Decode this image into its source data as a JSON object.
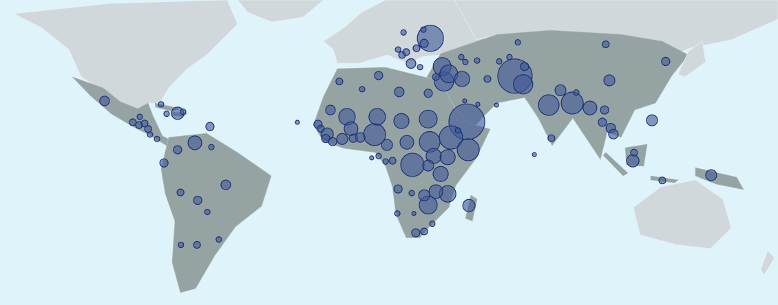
{
  "map": {
    "bubble_color": "#3f5a96",
    "bubbles": [
      {
        "lon": -106.8,
        "lat": 24.0,
        "value": 49
      },
      {
        "lon": -95.0,
        "lat": 15.6,
        "value": 25
      },
      {
        "lon": -92.4,
        "lat": 14.5,
        "value": 25
      },
      {
        "lon": -90.1,
        "lat": 15.1,
        "value": 25
      },
      {
        "lon": -88.6,
        "lat": 12.9,
        "value": 25
      },
      {
        "lon": -87.8,
        "lat": 10.6,
        "value": 16
      },
      {
        "lon": -84.9,
        "lat": 8.8,
        "value": 16
      },
      {
        "lon": -92.1,
        "lat": 17.8,
        "value": 16
      },
      {
        "lon": -83.2,
        "lat": 22.7,
        "value": 16
      },
      {
        "lon": -80.9,
        "lat": 19.0,
        "value": 16
      },
      {
        "lon": -76.3,
        "lat": 19.2,
        "value": 81
      },
      {
        "lon": -74.0,
        "lat": 19.8,
        "value": 16
      },
      {
        "lon": -62.8,
        "lat": 13.9,
        "value": 36
      },
      {
        "lon": -69.1,
        "lat": 7.2,
        "value": 100
      },
      {
        "lon": -76.3,
        "lat": 4.3,
        "value": 36
      },
      {
        "lon": -82.0,
        "lat": -1.2,
        "value": 36
      },
      {
        "lon": -62.2,
        "lat": 5.4,
        "value": 16
      },
      {
        "lon": -75.1,
        "lat": -13.4,
        "value": 25
      },
      {
        "lon": -67.9,
        "lat": -16.6,
        "value": 36
      },
      {
        "lon": -56.2,
        "lat": -10.3,
        "value": 49
      },
      {
        "lon": -63.9,
        "lat": -21.2,
        "value": 16
      },
      {
        "lon": -59.1,
        "lat": -31.5,
        "value": 16
      },
      {
        "lon": -68.2,
        "lat": -33.4,
        "value": 25
      },
      {
        "lon": -74.9,
        "lat": -33.4,
        "value": 16
      },
      {
        "lon": 18.0,
        "lat": 47.0,
        "value": 16
      },
      {
        "lon": 26.3,
        "lat": 47.8,
        "value": 16
      },
      {
        "lon": 29.2,
        "lat": 45.3,
        "value": 361
      },
      {
        "lon": 26.6,
        "lat": 43.8,
        "value": 36
      },
      {
        "lon": 23.4,
        "lat": 42.3,
        "value": 25
      },
      {
        "lon": 15.7,
        "lat": 41.9,
        "value": 16
      },
      {
        "lon": 17.4,
        "lat": 40.2,
        "value": 25
      },
      {
        "lon": 19.1,
        "lat": 41.1,
        "value": 25
      },
      {
        "lon": 21.1,
        "lat": 37.4,
        "value": 49
      },
      {
        "lon": 24.9,
        "lat": 36.2,
        "value": 16
      },
      {
        "lon": 34.1,
        "lat": 36.4,
        "value": 169
      },
      {
        "lon": 36.9,
        "lat": 33.9,
        "value": 169
      },
      {
        "lon": 34.9,
        "lat": 31.2,
        "value": 196
      },
      {
        "lon": 31.5,
        "lat": 32.8,
        "value": 25
      },
      {
        "lon": 42.1,
        "lat": 39.5,
        "value": 16
      },
      {
        "lon": 43.8,
        "lat": 37.9,
        "value": 16
      },
      {
        "lon": 48.7,
        "lat": 38.4,
        "value": 16
      },
      {
        "lon": 57.9,
        "lat": 38.1,
        "value": 16
      },
      {
        "lon": 62.2,
        "lat": 39.5,
        "value": 16
      },
      {
        "lon": 65.7,
        "lat": 44.1,
        "value": 16
      },
      {
        "lon": 68.5,
        "lat": 36.4,
        "value": 36
      },
      {
        "lon": 64.5,
        "lat": 33.1,
        "value": 625
      },
      {
        "lon": 67.9,
        "lat": 30.2,
        "value": 196
      },
      {
        "lon": 53.0,
        "lat": 32.1,
        "value": 25
      },
      {
        "lon": 42.4,
        "lat": 32.1,
        "value": 121
      },
      {
        "lon": 44.4,
        "lat": 15.8,
        "value": 676
      },
      {
        "lon": 45.0,
        "lat": 4.3,
        "value": 256
      },
      {
        "lon": 56.8,
        "lat": 22.4,
        "value": 9
      },
      {
        "lon": 49.0,
        "lat": 22.7,
        "value": 9
      },
      {
        "lon": 43.5,
        "lat": 24.0,
        "value": 9
      },
      {
        "lon": -8.8,
        "lat": 31.2,
        "value": 25
      },
      {
        "lon": 7.6,
        "lat": 33.3,
        "value": 36
      },
      {
        "lon": 0.7,
        "lat": 28.4,
        "value": 16
      },
      {
        "lon": 16.2,
        "lat": 27.4,
        "value": 49
      },
      {
        "lon": 28.3,
        "lat": 26.9,
        "value": 36
      },
      {
        "lon": -12.5,
        "lat": 20.5,
        "value": 49
      },
      {
        "lon": -5.6,
        "lat": 17.8,
        "value": 144
      },
      {
        "lon": 7.0,
        "lat": 17.8,
        "value": 144
      },
      {
        "lon": 17.1,
        "lat": 16.1,
        "value": 121
      },
      {
        "lon": 28.3,
        "lat": 16.9,
        "value": 169
      },
      {
        "lon": -17.7,
        "lat": 14.8,
        "value": 36
      },
      {
        "lon": -16.5,
        "lat": 13.0,
        "value": 25
      },
      {
        "lon": -13.9,
        "lat": 10.8,
        "value": 81
      },
      {
        "lon": -14.5,
        "lat": 9.0,
        "value": 36
      },
      {
        "lon": -11.6,
        "lat": 7.7,
        "value": 36
      },
      {
        "lon": -7.6,
        "lat": 8.8,
        "value": 64
      },
      {
        "lon": -3.9,
        "lat": 13.0,
        "value": 100
      },
      {
        "lon": -3.0,
        "lat": 9.1,
        "value": 36
      },
      {
        "lon": -0.1,
        "lat": 9.4,
        "value": 49
      },
      {
        "lon": 5.9,
        "lat": 10.6,
        "value": 256
      },
      {
        "lon": 11.1,
        "lat": 6.3,
        "value": 64
      },
      {
        "lon": 19.4,
        "lat": 7.4,
        "value": 100
      },
      {
        "lon": 28.9,
        "lat": 7.6,
        "value": 225
      },
      {
        "lon": 37.8,
        "lat": 9.4,
        "value": 289
      },
      {
        "lon": 40.7,
        "lat": 12.3,
        "value": 16
      },
      {
        "lon": 4.7,
        "lat": 0.9,
        "value": 9
      },
      {
        "lon": 7.6,
        "lat": 1.7,
        "value": 16
      },
      {
        "lon": 10.5,
        "lat": -0.6,
        "value": 16
      },
      {
        "lon": 13.4,
        "lat": -0.3,
        "value": 25
      },
      {
        "lon": 21.7,
        "lat": -2.0,
        "value": 289
      },
      {
        "lon": 28.3,
        "lat": -2.3,
        "value": 64
      },
      {
        "lon": 30.6,
        "lat": 1.7,
        "value": 121
      },
      {
        "lon": 36.4,
        "lat": 1.2,
        "value": 121
      },
      {
        "lon": 33.5,
        "lat": -5.8,
        "value": 121
      },
      {
        "lon": 15.7,
        "lat": -12.0,
        "value": 36
      },
      {
        "lon": 26.6,
        "lat": -14.6,
        "value": 64
      },
      {
        "lon": 31.5,
        "lat": -13.1,
        "value": 100
      },
      {
        "lon": 36.4,
        "lat": -14.0,
        "value": 144
      },
      {
        "lon": 28.3,
        "lat": -18.5,
        "value": 169
      },
      {
        "lon": 21.4,
        "lat": -13.7,
        "value": 16
      },
      {
        "lon": 45.3,
        "lat": -18.7,
        "value": 81
      },
      {
        "lon": 15.4,
        "lat": -21.8,
        "value": 16
      },
      {
        "lon": 22.3,
        "lat": -21.8,
        "value": 9
      },
      {
        "lon": 30.0,
        "lat": -25.7,
        "value": 16
      },
      {
        "lon": 23.1,
        "lat": -29.1,
        "value": 36
      },
      {
        "lon": 26.6,
        "lat": -28.6,
        "value": 25
      },
      {
        "lon": -26.3,
        "lat": 15.6,
        "value": 9
      },
      {
        "lon": 78.6,
        "lat": 22.4,
        "value": 225
      },
      {
        "lon": 83.5,
        "lat": 28.0,
        "value": 64
      },
      {
        "lon": 88.4,
        "lat": 23.2,
        "value": 256
      },
      {
        "lon": 90.1,
        "lat": 27.2,
        "value": 16
      },
      {
        "lon": 95.8,
        "lat": 21.3,
        "value": 100
      },
      {
        "lon": 101.9,
        "lat": 20.5,
        "value": 36
      },
      {
        "lon": 102.4,
        "lat": 43.5,
        "value": 25
      },
      {
        "lon": 103.9,
        "lat": 31.6,
        "value": 64
      },
      {
        "lon": 101.0,
        "lat": 15.6,
        "value": 36
      },
      {
        "lon": 104.5,
        "lat": 13.2,
        "value": 49
      },
      {
        "lon": 105.6,
        "lat": 10.8,
        "value": 49
      },
      {
        "lon": 121.7,
        "lat": 16.4,
        "value": 64
      },
      {
        "lon": 127.4,
        "lat": 38.1,
        "value": 36
      },
      {
        "lon": 114.2,
        "lat": 3.1,
        "value": 25
      },
      {
        "lon": 113.7,
        "lat": -0.3,
        "value": 81
      },
      {
        "lon": 126.0,
        "lat": -8.5,
        "value": 25
      },
      {
        "lon": 146.4,
        "lat": -6.3,
        "value": 64
      },
      {
        "lon": 79.7,
        "lat": 9.1,
        "value": 25
      },
      {
        "lon": 72.6,
        "lat": 2.3,
        "value": 9
      }
    ]
  }
}
